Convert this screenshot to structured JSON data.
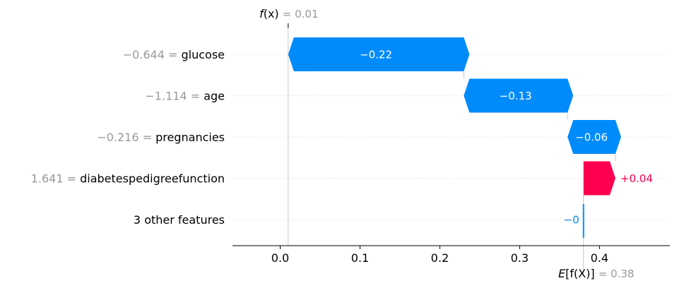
{
  "chart_data": {
    "type": "waterfall",
    "fx": {
      "symbol": "f(x)",
      "value_text": "= 0.01",
      "value": 0.01
    },
    "expected": {
      "symbol": "E[f(X)]",
      "value_text": "= 0.38",
      "value": 0.38
    },
    "features": [
      {
        "value_text": "−0.644",
        "eq": "=",
        "name": "glucose",
        "start": 0.23,
        "end": 0.01,
        "label": "−0.22"
      },
      {
        "value_text": "−1.114",
        "eq": "=",
        "name": "age",
        "start": 0.36,
        "end": 0.23,
        "label": "−0.13"
      },
      {
        "value_text": "−0.216",
        "eq": "=",
        "name": "pregnancies",
        "start": 0.42,
        "end": 0.36,
        "label": "−0.06"
      },
      {
        "value_text": "1.641",
        "eq": "=",
        "name": "diabetespedigreefunction",
        "start": 0.38,
        "end": 0.42,
        "label": "+0.04"
      },
      {
        "value_text": "",
        "eq": "",
        "name": "3 other features",
        "start": 0.38,
        "end": 0.38,
        "label": "−0"
      }
    ],
    "xlim": [
      -0.06,
      0.49
    ],
    "xticks": [
      0.0,
      0.1,
      0.2,
      0.3,
      0.4
    ],
    "xtick_labels": [
      "0.0",
      "0.1",
      "0.2",
      "0.3",
      "0.4"
    ],
    "grid": true,
    "colors": {
      "negative": "#008bfb",
      "positive": "#ff0051",
      "value_text": "#999999"
    }
  }
}
